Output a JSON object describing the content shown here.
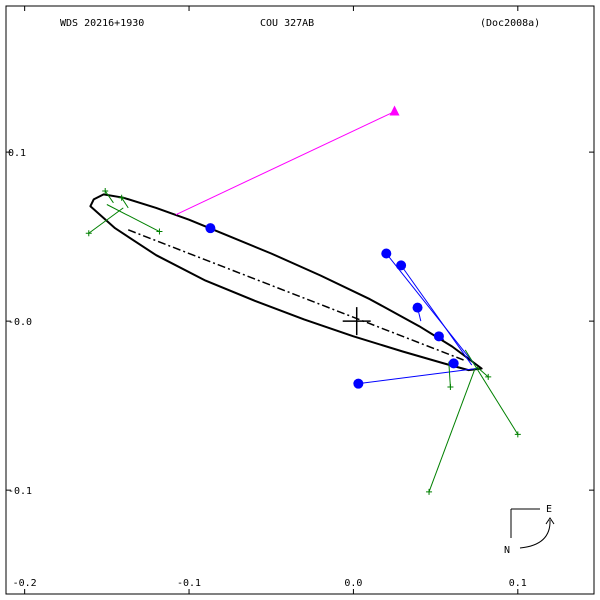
{
  "header": {
    "left": "WDS 20216+1930",
    "center": "COU 327AB",
    "right": "(Doc2008a)"
  },
  "compass": {
    "east_label": "E",
    "north_label": "N"
  },
  "chart_data": {
    "type": "scatter",
    "title": "",
    "xlabel": "",
    "ylabel": "",
    "xlim": [
      -0.215,
      0.15
    ],
    "ylim": [
      -0.165,
      0.19
    ],
    "x_ticks": [
      {
        "value": -0.2,
        "label": "-0.2"
      },
      {
        "value": -0.1,
        "label": "-0.1"
      },
      {
        "value": 0.0,
        "label": "0.0"
      },
      {
        "value": 0.1,
        "label": "0.1"
      }
    ],
    "y_ticks": [
      {
        "value": 0.1,
        "label": "0.1"
      },
      {
        "value": 0.0,
        "label": "-0.0"
      },
      {
        "value": -0.1,
        "label": "-0.1"
      }
    ],
    "grid": false,
    "colors": {
      "orbit": "#000000",
      "blue": "#0000ff",
      "green": "#008000",
      "magenta": "#ff00ff"
    },
    "orbit_ellipse": [
      [
        -0.158,
        0.072
      ],
      [
        -0.152,
        0.075
      ],
      [
        -0.14,
        0.073
      ],
      [
        -0.12,
        0.067
      ],
      [
        -0.1,
        0.06
      ],
      [
        -0.08,
        0.052
      ],
      [
        -0.05,
        0.04
      ],
      [
        -0.02,
        0.027
      ],
      [
        0.01,
        0.013
      ],
      [
        0.04,
        -0.003
      ],
      [
        0.06,
        -0.015
      ],
      [
        0.078,
        -0.028
      ],
      [
        0.07,
        -0.029
      ],
      [
        0.055,
        -0.025
      ],
      [
        0.03,
        -0.018
      ],
      [
        0.0,
        -0.009
      ],
      [
        -0.03,
        0.001
      ],
      [
        -0.06,
        0.012
      ],
      [
        -0.09,
        0.024
      ],
      [
        -0.12,
        0.039
      ],
      [
        -0.145,
        0.055
      ],
      [
        -0.16,
        0.068
      ],
      [
        -0.158,
        0.072
      ]
    ],
    "line_of_nodes": [
      [
        -0.137,
        0.054
      ],
      [
        0.067,
        -0.023
      ]
    ],
    "center_marker": [
      0.002,
      0.0
    ],
    "blue_points": [
      {
        "obs": [
          -0.087,
          0.055
        ],
        "pred": [
          -0.087,
          0.055
        ]
      },
      {
        "obs": [
          0.02,
          0.04
        ],
        "pred": [
          0.074,
          -0.026
        ]
      },
      {
        "obs": [
          0.029,
          0.033
        ],
        "pred": [
          0.072,
          -0.026
        ]
      },
      {
        "obs": [
          0.039,
          0.008
        ],
        "pred": [
          0.041,
          0.0
        ]
      },
      {
        "obs": [
          0.052,
          -0.009
        ],
        "pred": [
          0.055,
          -0.011
        ]
      },
      {
        "obs": [
          0.061,
          -0.025
        ],
        "pred": [
          0.063,
          -0.025
        ]
      },
      {
        "obs": [
          0.003,
          -0.037
        ],
        "pred": [
          0.075,
          -0.028
        ]
      }
    ],
    "green_points": [
      {
        "obs": [
          -0.151,
          0.077
        ],
        "pred": [
          -0.146,
          0.07
        ]
      },
      {
        "obs": [
          -0.141,
          0.073
        ],
        "pred": [
          -0.137,
          0.067
        ]
      },
      {
        "obs": [
          -0.118,
          0.053
        ],
        "pred": [
          -0.15,
          0.069
        ]
      },
      {
        "obs": [
          -0.161,
          0.052
        ],
        "pred": [
          -0.14,
          0.067
        ]
      },
      {
        "obs": [
          0.059,
          -0.039
        ],
        "pred": [
          0.058,
          -0.024
        ]
      },
      {
        "obs": [
          0.082,
          -0.033
        ],
        "pred": [
          0.075,
          -0.027
        ]
      },
      {
        "obs": [
          0.1,
          -0.067
        ],
        "pred": [
          0.068,
          -0.017
        ]
      },
      {
        "obs": [
          0.046,
          -0.101
        ],
        "pred": [
          0.074,
          -0.028
        ]
      }
    ],
    "magenta_point": {
      "obs": [
        0.025,
        0.124
      ],
      "pred": [
        -0.108,
        0.063
      ]
    }
  }
}
